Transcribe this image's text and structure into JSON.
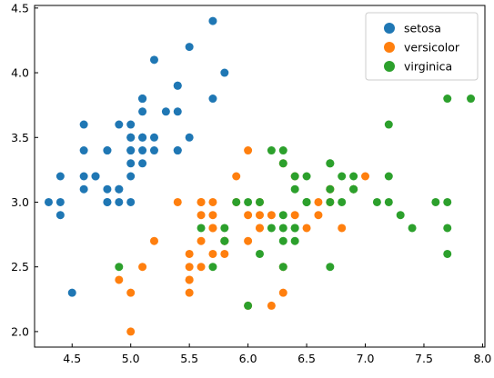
{
  "chart_data": {
    "type": "scatter",
    "title": "",
    "xlabel": "",
    "ylabel": "",
    "xlim": [
      4.18,
      8.02
    ],
    "ylim": [
      1.88,
      4.52
    ],
    "xticks": [
      "4.5",
      "5.0",
      "5.5",
      "6.0",
      "6.5",
      "7.0",
      "7.5",
      "8.0"
    ],
    "yticks": [
      "2.0",
      "2.5",
      "3.0",
      "3.5",
      "4.0",
      "4.5"
    ],
    "grid": false,
    "legend": "top-right",
    "series": [
      {
        "name": "setosa",
        "color": "#1f77b4",
        "points": [
          [
            5.1,
            3.5
          ],
          [
            4.9,
            3.0
          ],
          [
            4.7,
            3.2
          ],
          [
            4.6,
            3.1
          ],
          [
            5.0,
            3.6
          ],
          [
            5.4,
            3.9
          ],
          [
            4.6,
            3.4
          ],
          [
            5.0,
            3.4
          ],
          [
            4.4,
            2.9
          ],
          [
            4.9,
            3.1
          ],
          [
            5.4,
            3.7
          ],
          [
            4.8,
            3.4
          ],
          [
            4.8,
            3.0
          ],
          [
            4.3,
            3.0
          ],
          [
            5.8,
            4.0
          ],
          [
            5.7,
            4.4
          ],
          [
            5.4,
            3.9
          ],
          [
            5.1,
            3.5
          ],
          [
            5.7,
            3.8
          ],
          [
            5.1,
            3.8
          ],
          [
            5.4,
            3.4
          ],
          [
            5.1,
            3.7
          ],
          [
            4.6,
            3.6
          ],
          [
            5.1,
            3.3
          ],
          [
            4.8,
            3.4
          ],
          [
            5.0,
            3.0
          ],
          [
            5.0,
            3.4
          ],
          [
            5.2,
            3.5
          ],
          [
            5.2,
            3.4
          ],
          [
            4.7,
            3.2
          ],
          [
            4.8,
            3.1
          ],
          [
            5.4,
            3.4
          ],
          [
            5.2,
            4.1
          ],
          [
            5.5,
            4.2
          ],
          [
            4.9,
            3.1
          ],
          [
            5.0,
            3.2
          ],
          [
            5.5,
            3.5
          ],
          [
            4.9,
            3.6
          ],
          [
            4.4,
            3.0
          ],
          [
            5.1,
            3.4
          ],
          [
            5.0,
            3.5
          ],
          [
            4.5,
            2.3
          ],
          [
            4.4,
            3.2
          ],
          [
            5.0,
            3.5
          ],
          [
            5.1,
            3.8
          ],
          [
            4.8,
            3.0
          ],
          [
            5.1,
            3.8
          ],
          [
            4.6,
            3.2
          ],
          [
            5.3,
            3.7
          ],
          [
            5.0,
            3.3
          ]
        ]
      },
      {
        "name": "versicolor",
        "color": "#ff7f0e",
        "points": [
          [
            7.0,
            3.2
          ],
          [
            6.4,
            3.2
          ],
          [
            6.9,
            3.1
          ],
          [
            5.5,
            2.3
          ],
          [
            6.5,
            2.8
          ],
          [
            5.7,
            2.8
          ],
          [
            6.3,
            3.3
          ],
          [
            4.9,
            2.4
          ],
          [
            6.6,
            2.9
          ],
          [
            5.2,
            2.7
          ],
          [
            5.0,
            2.0
          ],
          [
            5.9,
            3.0
          ],
          [
            6.0,
            2.2
          ],
          [
            6.1,
            2.9
          ],
          [
            5.6,
            2.9
          ],
          [
            6.7,
            3.1
          ],
          [
            5.6,
            3.0
          ],
          [
            5.8,
            2.7
          ],
          [
            6.2,
            2.2
          ],
          [
            5.6,
            2.5
          ],
          [
            5.9,
            3.2
          ],
          [
            6.1,
            2.8
          ],
          [
            6.3,
            2.5
          ],
          [
            6.1,
            2.8
          ],
          [
            6.4,
            2.9
          ],
          [
            6.6,
            3.0
          ],
          [
            6.8,
            2.8
          ],
          [
            6.7,
            3.0
          ],
          [
            6.0,
            2.9
          ],
          [
            5.7,
            2.6
          ],
          [
            5.5,
            2.4
          ],
          [
            5.5,
            2.4
          ],
          [
            5.8,
            2.7
          ],
          [
            6.0,
            2.7
          ],
          [
            5.4,
            3.0
          ],
          [
            6.0,
            3.4
          ],
          [
            6.7,
            3.1
          ],
          [
            6.3,
            2.3
          ],
          [
            5.6,
            3.0
          ],
          [
            5.5,
            2.5
          ],
          [
            5.5,
            2.6
          ],
          [
            6.1,
            3.0
          ],
          [
            5.8,
            2.6
          ],
          [
            5.0,
            2.3
          ],
          [
            5.6,
            2.7
          ],
          [
            5.7,
            3.0
          ],
          [
            5.7,
            2.9
          ],
          [
            6.2,
            2.9
          ],
          [
            5.1,
            2.5
          ],
          [
            5.7,
            2.8
          ]
        ]
      },
      {
        "name": "virginica",
        "color": "#2ca02c",
        "points": [
          [
            6.3,
            3.3
          ],
          [
            5.8,
            2.7
          ],
          [
            7.1,
            3.0
          ],
          [
            6.3,
            2.9
          ],
          [
            6.5,
            3.0
          ],
          [
            7.6,
            3.0
          ],
          [
            4.9,
            2.5
          ],
          [
            7.3,
            2.9
          ],
          [
            6.7,
            2.5
          ],
          [
            7.2,
            3.6
          ],
          [
            6.5,
            3.2
          ],
          [
            6.4,
            2.7
          ],
          [
            6.8,
            3.0
          ],
          [
            5.7,
            2.5
          ],
          [
            5.8,
            2.8
          ],
          [
            6.4,
            3.2
          ],
          [
            6.5,
            3.0
          ],
          [
            7.7,
            3.8
          ],
          [
            7.7,
            2.6
          ],
          [
            6.0,
            2.2
          ],
          [
            6.9,
            3.2
          ],
          [
            5.6,
            2.8
          ],
          [
            7.7,
            2.8
          ],
          [
            6.3,
            2.7
          ],
          [
            6.7,
            3.3
          ],
          [
            7.2,
            3.2
          ],
          [
            6.2,
            2.8
          ],
          [
            6.1,
            3.0
          ],
          [
            6.4,
            2.8
          ],
          [
            7.2,
            3.0
          ],
          [
            7.4,
            2.8
          ],
          [
            7.9,
            3.8
          ],
          [
            6.4,
            2.8
          ],
          [
            6.3,
            2.8
          ],
          [
            6.1,
            2.6
          ],
          [
            7.7,
            3.0
          ],
          [
            6.3,
            3.4
          ],
          [
            6.4,
            3.1
          ],
          [
            6.0,
            3.0
          ],
          [
            6.9,
            3.1
          ],
          [
            6.7,
            3.1
          ],
          [
            6.9,
            3.1
          ],
          [
            5.8,
            2.7
          ],
          [
            6.8,
            3.2
          ],
          [
            6.7,
            3.3
          ],
          [
            6.7,
            3.0
          ],
          [
            6.3,
            2.5
          ],
          [
            6.5,
            3.0
          ],
          [
            6.2,
            3.4
          ],
          [
            5.9,
            3.0
          ]
        ]
      }
    ]
  }
}
